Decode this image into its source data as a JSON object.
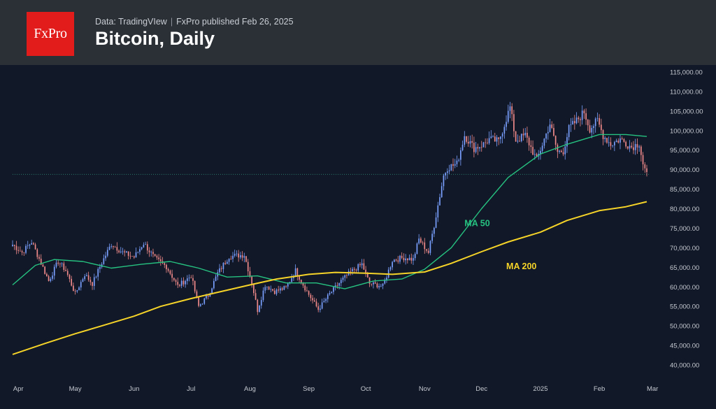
{
  "header": {
    "logo_text": "FxPro",
    "source_left": "Data: TradingVIew",
    "source_sep": "|",
    "source_right": "FxPro published Feb 26, 2025",
    "title": "Bitcoin, Daily"
  },
  "colors": {
    "header_bg": "#2b2f36",
    "chart_bg": "#111827",
    "logo_bg": "#e21b1b",
    "up_candle": "#7aa0ff",
    "down_candle": "#f08a8a",
    "ma50": "#26c281",
    "ma200": "#f5d328"
  },
  "chart_data": {
    "type": "candlestick",
    "title": "Bitcoin, Daily",
    "ylim": [
      40000,
      115000
    ],
    "y_ticks": [
      40000,
      45000,
      50000,
      55000,
      60000,
      65000,
      70000,
      75000,
      80000,
      85000,
      90000,
      95000,
      100000,
      105000,
      110000,
      115000
    ],
    "y_tick_labels": [
      "40,000.00",
      "45,000.00",
      "50,000.00",
      "55,000.00",
      "60,000.00",
      "65,000.00",
      "70,000.00",
      "75,000.00",
      "80,000.00",
      "85,000.00",
      "90,000.00",
      "95,000.00",
      "100,000.00",
      "105,000.00",
      "110,000.00",
      "115,000.00"
    ],
    "x_range": [
      "2024-03-29",
      "2025-02-26"
    ],
    "x_ticks": [
      {
        "label": "Apr",
        "date": "2024-04-01"
      },
      {
        "label": "May",
        "date": "2024-05-01"
      },
      {
        "label": "Jun",
        "date": "2024-06-01"
      },
      {
        "label": "Jul",
        "date": "2024-07-01"
      },
      {
        "label": "Aug",
        "date": "2024-08-01"
      },
      {
        "label": "Sep",
        "date": "2024-09-01"
      },
      {
        "label": "Oct",
        "date": "2024-10-01"
      },
      {
        "label": "Nov",
        "date": "2024-11-01"
      },
      {
        "label": "Dec",
        "date": "2024-12-01"
      },
      {
        "label": "2025",
        "date": "2025-01-01"
      },
      {
        "label": "Feb",
        "date": "2025-02-01"
      },
      {
        "label": "Mar",
        "date": "2025-03-01"
      }
    ],
    "price_line": 88800,
    "close_points": [
      [
        "2024-03-29",
        70800
      ],
      [
        "2024-04-03",
        68800
      ],
      [
        "2024-04-08",
        71500
      ],
      [
        "2024-04-12",
        67200
      ],
      [
        "2024-04-17",
        61500
      ],
      [
        "2024-04-22",
        66500
      ],
      [
        "2024-04-26",
        64200
      ],
      [
        "2024-05-01",
        58200
      ],
      [
        "2024-05-06",
        63200
      ],
      [
        "2024-05-10",
        60800
      ],
      [
        "2024-05-15",
        66200
      ],
      [
        "2024-05-20",
        71000
      ],
      [
        "2024-05-26",
        68800
      ],
      [
        "2024-06-01",
        67600
      ],
      [
        "2024-06-06",
        71200
      ],
      [
        "2024-06-12",
        67200
      ],
      [
        "2024-06-18",
        65200
      ],
      [
        "2024-06-24",
        60200
      ],
      [
        "2024-07-01",
        62800
      ],
      [
        "2024-07-05",
        55000
      ],
      [
        "2024-07-10",
        57800
      ],
      [
        "2024-07-15",
        63500
      ],
      [
        "2024-07-21",
        67800
      ],
      [
        "2024-07-29",
        68200
      ],
      [
        "2024-08-02",
        61000
      ],
      [
        "2024-08-05",
        54000
      ],
      [
        "2024-08-09",
        60500
      ],
      [
        "2024-08-14",
        58800
      ],
      [
        "2024-08-20",
        59800
      ],
      [
        "2024-08-25",
        64200
      ],
      [
        "2024-08-31",
        58800
      ],
      [
        "2024-09-06",
        54200
      ],
      [
        "2024-09-12",
        58200
      ],
      [
        "2024-09-18",
        61500
      ],
      [
        "2024-09-23",
        63800
      ],
      [
        "2024-09-29",
        65800
      ],
      [
        "2024-10-03",
        60800
      ],
      [
        "2024-10-10",
        60200
      ],
      [
        "2024-10-15",
        66800
      ],
      [
        "2024-10-21",
        67500
      ],
      [
        "2024-10-26",
        67000
      ],
      [
        "2024-10-29",
        72200
      ],
      [
        "2024-11-03",
        68800
      ],
      [
        "2024-11-06",
        75800
      ],
      [
        "2024-11-11",
        88500
      ],
      [
        "2024-11-13",
        90500
      ],
      [
        "2024-11-18",
        91500
      ],
      [
        "2024-11-22",
        98800
      ],
      [
        "2024-11-27",
        95500
      ],
      [
        "2024-12-02",
        96500
      ],
      [
        "2024-12-05",
        97800
      ],
      [
        "2024-12-10",
        97200
      ],
      [
        "2024-12-16",
        106000
      ],
      [
        "2024-12-19",
        97500
      ],
      [
        "2024-12-24",
        98800
      ],
      [
        "2024-12-30",
        92500
      ],
      [
        "2025-01-06",
        101800
      ],
      [
        "2025-01-10",
        94500
      ],
      [
        "2025-01-13",
        94800
      ],
      [
        "2025-01-16",
        100500
      ],
      [
        "2025-01-20",
        102500
      ],
      [
        "2025-01-24",
        104800
      ],
      [
        "2025-01-27",
        100500
      ],
      [
        "2025-01-31",
        102500
      ],
      [
        "2025-02-03",
        98800
      ],
      [
        "2025-02-07",
        96500
      ],
      [
        "2025-02-12",
        97800
      ],
      [
        "2025-02-18",
        95800
      ],
      [
        "2025-02-22",
        96800
      ],
      [
        "2025-02-24",
        91500
      ],
      [
        "2025-02-26",
        88500
      ]
    ],
    "ma_series": [
      {
        "name": "MA 50",
        "points": [
          [
            "2024-03-29",
            60500
          ],
          [
            "2024-04-10",
            65500
          ],
          [
            "2024-04-20",
            67000
          ],
          [
            "2024-05-05",
            66500
          ],
          [
            "2024-05-20",
            64800
          ],
          [
            "2024-06-05",
            65800
          ],
          [
            "2024-06-20",
            66500
          ],
          [
            "2024-07-05",
            64800
          ],
          [
            "2024-07-20",
            62500
          ],
          [
            "2024-08-05",
            62800
          ],
          [
            "2024-08-20",
            61000
          ],
          [
            "2024-09-05",
            61000
          ],
          [
            "2024-09-20",
            59500
          ],
          [
            "2024-10-05",
            61500
          ],
          [
            "2024-10-20",
            62000
          ],
          [
            "2024-11-01",
            64500
          ],
          [
            "2024-11-15",
            70000
          ],
          [
            "2024-12-01",
            80000
          ],
          [
            "2024-12-15",
            88000
          ],
          [
            "2025-01-01",
            94000
          ],
          [
            "2025-01-15",
            96500
          ],
          [
            "2025-02-01",
            99000
          ],
          [
            "2025-02-15",
            99000
          ],
          [
            "2025-02-26",
            98500
          ]
        ]
      },
      {
        "name": "MA 200",
        "points": [
          [
            "2024-03-29",
            42700
          ],
          [
            "2024-04-15",
            45500
          ],
          [
            "2024-05-01",
            48000
          ],
          [
            "2024-05-15",
            50000
          ],
          [
            "2024-06-01",
            52500
          ],
          [
            "2024-06-15",
            55000
          ],
          [
            "2024-07-01",
            57000
          ],
          [
            "2024-07-15",
            58600
          ],
          [
            "2024-08-01",
            60500
          ],
          [
            "2024-08-15",
            62000
          ],
          [
            "2024-09-01",
            63200
          ],
          [
            "2024-09-15",
            63700
          ],
          [
            "2024-10-01",
            63500
          ],
          [
            "2024-10-15",
            63200
          ],
          [
            "2024-11-01",
            63800
          ],
          [
            "2024-11-15",
            66000
          ],
          [
            "2024-12-01",
            69000
          ],
          [
            "2024-12-15",
            71500
          ],
          [
            "2025-01-01",
            74000
          ],
          [
            "2025-01-15",
            77000
          ],
          [
            "2025-02-01",
            79500
          ],
          [
            "2025-02-15",
            80500
          ],
          [
            "2025-02-26",
            81800
          ]
        ]
      }
    ],
    "annotations": [
      {
        "text": "MA 50",
        "date": "2024-11-22",
        "value": 75500,
        "color": "#26c281"
      },
      {
        "text": "MA 200",
        "date": "2024-12-14",
        "value": 64500,
        "color": "#f5d328"
      }
    ]
  }
}
